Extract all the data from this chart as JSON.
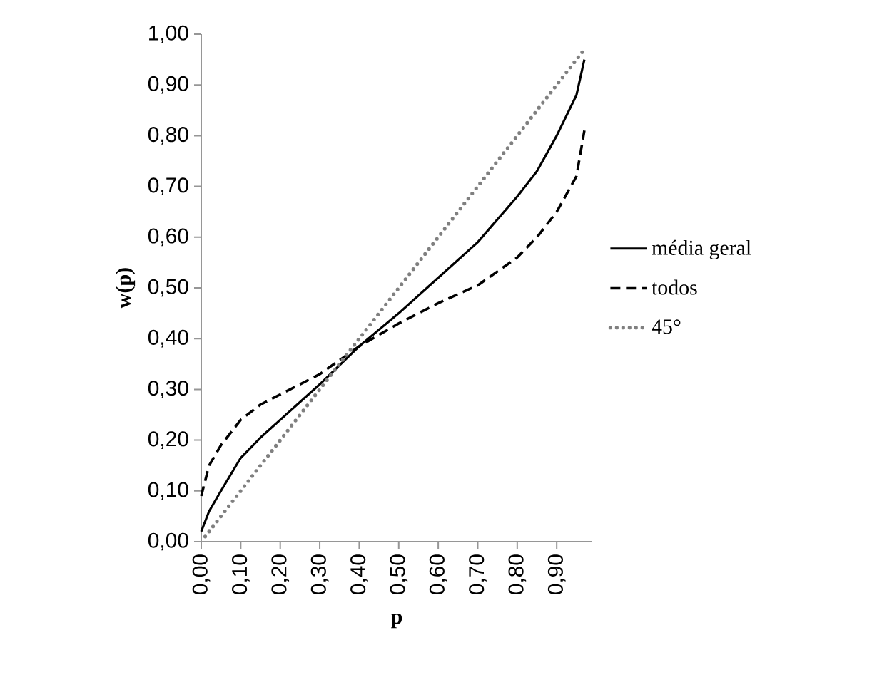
{
  "chart_data": {
    "type": "line",
    "xlabel": "p",
    "ylabel": "w(p)",
    "legend": "right",
    "grid": false,
    "x": [
      0,
      0.02,
      0.05,
      0.1,
      0.15,
      0.2,
      0.3,
      0.4,
      0.5,
      0.6,
      0.7,
      0.8,
      0.85,
      0.9,
      0.95,
      0.97
    ],
    "xlim": [
      0,
      0.99
    ],
    "ylim": [
      0,
      1
    ],
    "xticks": [
      {
        "value": 0,
        "label": "0,00"
      },
      {
        "value": 0.1,
        "label": "0,10"
      },
      {
        "value": 0.2,
        "label": "0,20"
      },
      {
        "value": 0.3,
        "label": "0,30"
      },
      {
        "value": 0.4,
        "label": "0,40"
      },
      {
        "value": 0.5,
        "label": "0,50"
      },
      {
        "value": 0.6,
        "label": "0,60"
      },
      {
        "value": 0.7,
        "label": "0,70"
      },
      {
        "value": 0.8,
        "label": "0,80"
      },
      {
        "value": 0.9,
        "label": "0,90"
      }
    ],
    "yticks": [
      {
        "value": 0,
        "label": "0,00"
      },
      {
        "value": 0.1,
        "label": "0,10"
      },
      {
        "value": 0.2,
        "label": "0,20"
      },
      {
        "value": 0.3,
        "label": "0,30"
      },
      {
        "value": 0.4,
        "label": "0,40"
      },
      {
        "value": 0.5,
        "label": "0,50"
      },
      {
        "value": 0.6,
        "label": "0,60"
      },
      {
        "value": 0.7,
        "label": "0,70"
      },
      {
        "value": 0.8,
        "label": "0,80"
      },
      {
        "value": 0.9,
        "label": "0,90"
      },
      {
        "value": 1,
        "label": "1,00"
      }
    ],
    "series": [
      {
        "name": "média geral",
        "color": "#000000",
        "line_style": "solid",
        "values": [
          0.02,
          0.06,
          0.1,
          0.165,
          0.205,
          0.24,
          0.31,
          0.385,
          0.45,
          0.52,
          0.59,
          0.68,
          0.73,
          0.8,
          0.88,
          0.95
        ]
      },
      {
        "name": "todos",
        "color": "#000000",
        "line_style": "dashed",
        "values": [
          0.09,
          0.15,
          0.19,
          0.24,
          0.27,
          0.29,
          0.33,
          0.385,
          0.43,
          0.47,
          0.505,
          0.56,
          0.6,
          0.65,
          0.72,
          0.81
        ]
      },
      {
        "name": "45°",
        "color": "#808080",
        "line_style": "dotted",
        "x": [
          0.01,
          0.97
        ],
        "values": [
          0.01,
          0.97
        ]
      }
    ]
  }
}
